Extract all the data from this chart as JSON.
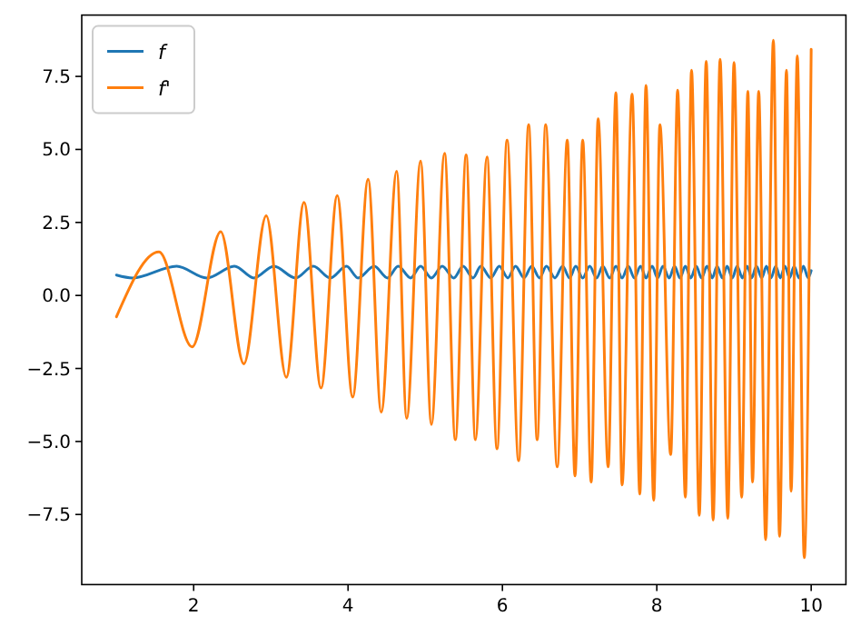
{
  "chart_data": {
    "type": "line",
    "legend": "top left",
    "grid": false,
    "xlim": [
      0.55,
      10.45
    ],
    "xticks": [
      2,
      4,
      6,
      8,
      10
    ],
    "ylim": [
      -9.9,
      9.6
    ],
    "yticks": [
      {
        "value": -7.5,
        "label": "−7.5"
      },
      {
        "value": -5,
        "label": "−5.0"
      },
      {
        "value": -2.5,
        "label": "−2.5"
      },
      {
        "value": 0,
        "label": "0.0"
      },
      {
        "value": 2.5,
        "label": "2.5"
      },
      {
        "value": 5,
        "label": "5.0"
      },
      {
        "value": 7.5,
        "label": "7.5"
      }
    ],
    "series": [
      {
        "name": "f",
        "color": "#1f77b4",
        "x": [
          1.0,
          1.21,
          1.78,
          2.17,
          2.53,
          2.78,
          3.04,
          3.32,
          3.55,
          3.77,
          3.98,
          4.13,
          4.34,
          4.51,
          4.65,
          4.81,
          4.94,
          5.08,
          5.22,
          5.37,
          5.49,
          5.62,
          5.72,
          5.85,
          5.96,
          6.07,
          6.17,
          6.28,
          6.38,
          6.48,
          6.57,
          6.68,
          6.78,
          6.87,
          6.95,
          7.04,
          7.13,
          7.22,
          7.3,
          7.39,
          7.47,
          7.55,
          7.63,
          7.71,
          7.79,
          7.86,
          7.94,
          8.01,
          8.08,
          8.16,
          8.23,
          8.3,
          8.37,
          8.44,
          8.51,
          8.58,
          8.65,
          8.72,
          8.78,
          8.85,
          8.91,
          8.98,
          9.04,
          9.11,
          9.17,
          9.23,
          9.29,
          9.36,
          9.42,
          9.48,
          9.54,
          9.6,
          9.66,
          9.72,
          9.78,
          9.84,
          9.9,
          9.96,
          10.0
        ],
        "values": [
          0.7,
          0.6,
          1.0,
          0.6,
          1.0,
          0.6,
          1.0,
          0.6,
          1.0,
          0.6,
          1.0,
          0.6,
          1.0,
          0.6,
          1.0,
          0.6,
          1.0,
          0.6,
          1.0,
          0.6,
          1.0,
          0.6,
          1.0,
          0.6,
          1.0,
          0.6,
          1.0,
          0.6,
          1.0,
          0.6,
          1.0,
          0.6,
          1.0,
          0.6,
          1.0,
          0.6,
          1.0,
          0.6,
          1.0,
          0.6,
          1.0,
          0.6,
          1.0,
          0.6,
          1.0,
          0.6,
          1.0,
          0.6,
          1.0,
          0.6,
          1.0,
          0.6,
          1.0,
          0.6,
          1.0,
          0.6,
          1.0,
          0.6,
          1.0,
          0.6,
          1.0,
          0.6,
          1.0,
          0.6,
          1.0,
          0.6,
          1.0,
          0.6,
          1.0,
          0.6,
          1.0,
          0.6,
          1.0,
          0.6,
          1.0,
          0.6,
          1.0,
          0.6,
          0.85
        ]
      },
      {
        "name": "f'",
        "color": "#ff7f0e",
        "x": [
          1.0,
          1.55,
          1.98,
          2.35,
          2.65,
          2.94,
          3.2,
          3.43,
          3.65,
          3.86,
          4.06,
          4.26,
          4.43,
          4.63,
          4.76,
          4.94,
          5.08,
          5.25,
          5.39,
          5.53,
          5.65,
          5.8,
          5.93,
          6.06,
          6.21,
          6.34,
          6.45,
          6.56,
          6.71,
          6.84,
          6.94,
          7.04,
          7.15,
          7.24,
          7.37,
          7.47,
          7.55,
          7.68,
          7.78,
          7.86,
          7.96,
          8.04,
          8.18,
          8.27,
          8.37,
          8.45,
          8.55,
          8.64,
          8.73,
          8.82,
          8.92,
          9.0,
          9.1,
          9.18,
          9.24,
          9.32,
          9.41,
          9.51,
          9.59,
          9.68,
          9.74,
          9.82,
          9.91,
          10.0
        ],
        "values": [
          -0.73,
          1.49,
          -1.76,
          2.18,
          -2.34,
          2.73,
          -2.8,
          3.19,
          -3.17,
          3.42,
          -3.48,
          3.98,
          -4.0,
          4.25,
          -4.21,
          4.6,
          -4.42,
          4.87,
          -4.94,
          4.81,
          -4.94,
          4.74,
          -5.25,
          5.32,
          -5.66,
          5.85,
          -4.94,
          5.85,
          -5.87,
          5.32,
          -6.18,
          5.32,
          -6.39,
          6.05,
          -5.87,
          6.94,
          -6.49,
          6.9,
          -6.8,
          7.19,
          -7.01,
          5.85,
          -5.45,
          7.03,
          -6.91,
          7.71,
          -7.53,
          8.02,
          -7.69,
          8.09,
          -7.63,
          7.98,
          -6.91,
          6.99,
          -6.39,
          6.99,
          -8.36,
          8.74,
          -8.25,
          7.71,
          -6.7,
          8.2,
          -8.98,
          8.43
        ]
      }
    ]
  }
}
